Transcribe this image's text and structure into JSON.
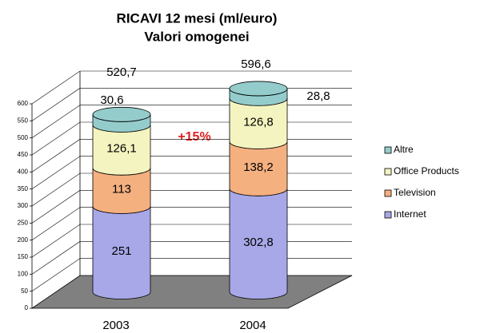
{
  "chart_data": {
    "type": "stacked-cylinder",
    "title": "RICAVI 12 mesi (ml/euro)",
    "subtitle": "Valori omogenei",
    "categories": [
      "2003",
      "2004"
    ],
    "series": [
      {
        "name": "Internet",
        "color": "#a8a8e8",
        "values": [
          251,
          302.8
        ],
        "value_labels": [
          "251",
          "302,8"
        ]
      },
      {
        "name": "Television",
        "color": "#f5b080",
        "values": [
          113,
          138.2
        ],
        "value_labels": [
          "113",
          "138,2"
        ]
      },
      {
        "name": "Office Products",
        "color": "#f4f4c0",
        "values": [
          126.1,
          126.8
        ],
        "value_labels": [
          "126,1",
          "126,8"
        ]
      },
      {
        "name": "Altre",
        "color": "#94cccc",
        "values": [
          30.6,
          28.8
        ],
        "value_labels": [
          "30,6",
          "28,8"
        ]
      }
    ],
    "totals": [
      520.7,
      596.6
    ],
    "total_labels": [
      "520,7",
      "596,6"
    ],
    "annotation": "+15%",
    "ylim": [
      0,
      600
    ],
    "yticks": [
      0,
      50,
      100,
      150,
      200,
      250,
      300,
      350,
      400,
      450,
      500,
      550,
      600
    ],
    "grid": true,
    "legend": "right"
  }
}
